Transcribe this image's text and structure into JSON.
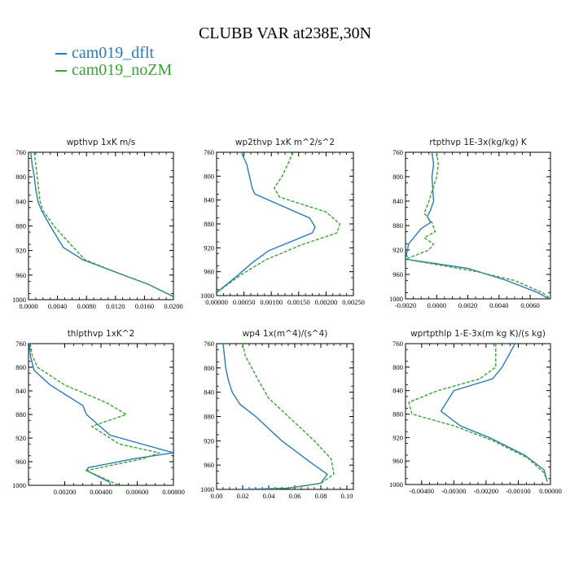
{
  "title": "CLUBB VAR at238E,30N",
  "legend": [
    {
      "label": "cam019_dflt",
      "color": "#2b7bb9"
    },
    {
      "label": "cam019_noZM",
      "color": "#3aa335"
    }
  ],
  "chart_data": [
    {
      "type": "line",
      "title": "wpthvp  1xK m/s",
      "xlim": [
        0,
        0.02
      ],
      "ylim": [
        760,
        1000
      ],
      "xticks": [
        "0.0000",
        "0.0040",
        "0.0080",
        "0.0120",
        "0.0160",
        "0.0200"
      ],
      "yticks": [
        "760",
        "800",
        "840",
        "880",
        "920",
        "960",
        "1000"
      ],
      "series": [
        {
          "legend_index": 0,
          "x": [
            0.0003,
            0.0005,
            0.0008,
            0.001,
            0.0013,
            0.0018,
            0.003,
            0.0048,
            0.0075,
            0.012,
            0.0165,
            0.02
          ],
          "y": [
            760,
            780,
            800,
            820,
            840,
            855,
            880,
            915,
            935,
            955,
            975,
            995
          ]
        },
        {
          "legend_index": 1,
          "x": [
            0.0008,
            0.001,
            0.0012,
            0.0014,
            0.0016,
            0.002,
            0.0035,
            0.0058,
            0.0078,
            0.012,
            0.0165,
            0.02
          ],
          "y": [
            760,
            780,
            800,
            820,
            840,
            855,
            880,
            910,
            935,
            955,
            975,
            995
          ]
        }
      ]
    },
    {
      "type": "line",
      "title": "wp2thvp  1xK m^2/s^2",
      "xlim": [
        0,
        0.0025
      ],
      "ylim": [
        760,
        1000
      ],
      "xticks": [
        "0.00000",
        "0.00050",
        "0.00100",
        "0.00150",
        "0.00200",
        "0.00250"
      ],
      "yticks": [
        "760",
        "800",
        "840",
        "880",
        "920",
        "960",
        "1000"
      ],
      "series": [
        {
          "legend_index": 0,
          "x": [
            0.00045,
            0.00055,
            0.0006,
            0.00065,
            0.0007,
            0.0017,
            0.0018,
            0.00175,
            0.00095,
            0.00065,
            0.0004,
            0.0
          ],
          "y": [
            760,
            780,
            800,
            820,
            830,
            870,
            885,
            895,
            925,
            945,
            965,
            995
          ]
        },
        {
          "legend_index": 1,
          "x": [
            0.0014,
            0.0013,
            0.0012,
            0.00105,
            0.00115,
            0.002,
            0.00225,
            0.0022,
            0.00155,
            0.0009,
            0.00045,
            0.0
          ],
          "y": [
            760,
            780,
            800,
            820,
            835,
            860,
            880,
            895,
            915,
            940,
            965,
            995
          ]
        }
      ]
    },
    {
      "type": "line",
      "title": "rtpthvp  1E-3x(kg/kg) K",
      "xlim": [
        -0.002,
        0.0073
      ],
      "ylim": [
        760,
        1000
      ],
      "xticks": [
        "-0.0020",
        "0.0000",
        "0.0020",
        "0.0040",
        "0.0060"
      ],
      "yticks": [
        "760",
        "800",
        "840",
        "880",
        "920",
        "960",
        "1000"
      ],
      "series": [
        {
          "legend_index": 0,
          "x": [
            -0.0003,
            -0.0002,
            -0.0003,
            -0.0002,
            -0.0004,
            -0.0006,
            -0.0004,
            -0.001,
            -0.0018,
            -0.002,
            0.002,
            0.0045,
            0.0065,
            0.0072
          ],
          "y": [
            760,
            780,
            800,
            840,
            855,
            865,
            875,
            885,
            910,
            935,
            950,
            970,
            990,
            1000
          ]
        },
        {
          "legend_index": 1,
          "x": [
            0.0,
            0.0001,
            0.0,
            -0.0005,
            -0.0008,
            -0.0003,
            -0.0001,
            -0.0008,
            -0.0002,
            -0.0005,
            -0.002,
            0.0025,
            0.005,
            0.0068,
            0.0073
          ],
          "y": [
            760,
            780,
            800,
            840,
            860,
            875,
            890,
            900,
            910,
            920,
            935,
            955,
            970,
            990,
            1000
          ]
        }
      ]
    },
    {
      "type": "line",
      "title": "thlpthvp  1xK^2",
      "xlim": [
        0,
        0.008
      ],
      "ylim": [
        760,
        1000
      ],
      "xticks": [
        "0.00200",
        "0.00400",
        "0.00600",
        "0.00800"
      ],
      "yticks": [
        "760",
        "800",
        "840",
        "880",
        "920",
        "960",
        "1000"
      ],
      "series": [
        {
          "legend_index": 0,
          "x": [
            5e-05,
            0.0001,
            0.0003,
            0.0012,
            0.003,
            0.0032,
            0.0045,
            0.008,
            0.0058,
            0.0033,
            0.0032,
            0.0045
          ],
          "y": [
            760,
            780,
            805,
            830,
            865,
            880,
            915,
            945,
            955,
            970,
            975,
            995
          ]
        },
        {
          "legend_index": 1,
          "x": [
            0.0001,
            0.0002,
            0.0005,
            0.002,
            0.0043,
            0.0054,
            0.0035,
            0.005,
            0.0072,
            0.0063,
            0.0032,
            0.005
          ],
          "y": [
            760,
            780,
            800,
            830,
            860,
            880,
            900,
            930,
            945,
            955,
            975,
            1000
          ]
        }
      ]
    },
    {
      "type": "line",
      "title": "wp4  1x(m^4)/(s^4)",
      "xlim": [
        0,
        0.105
      ],
      "ylim": [
        760,
        1000
      ],
      "xticks": [
        "0.00",
        "0.02",
        "0.04",
        "0.06",
        "0.08",
        "0.10"
      ],
      "yticks": [
        "760",
        "800",
        "840",
        "880",
        "920",
        "960",
        "1000"
      ],
      "series": [
        {
          "legend_index": 0,
          "x": [
            0.005,
            0.007,
            0.009,
            0.012,
            0.018,
            0.03,
            0.05,
            0.075,
            0.085,
            0.08,
            0.055,
            0.02
          ],
          "y": [
            760,
            800,
            820,
            840,
            860,
            880,
            920,
            960,
            975,
            990,
            998,
            1000
          ]
        },
        {
          "legend_index": 1,
          "x": [
            0.02,
            0.022,
            0.027,
            0.032,
            0.04,
            0.055,
            0.075,
            0.088,
            0.09,
            0.08,
            0.055,
            0.04
          ],
          "y": [
            760,
            780,
            800,
            820,
            850,
            880,
            920,
            950,
            975,
            990,
            998,
            1000
          ]
        }
      ]
    },
    {
      "type": "line",
      "title": "wprtpthlp  1-E-3x(m kg K)/(s kg)",
      "xlim": [
        -0.0045,
        0.0
      ],
      "ylim": [
        760,
        1000
      ],
      "xticks": [
        "-0.00400",
        "-0.00300",
        "-0.00200",
        "-0.00100",
        "0.00000"
      ],
      "yticks": [
        "760",
        "800",
        "840",
        "880",
        "920",
        "960",
        "1000"
      ],
      "series": [
        {
          "legend_index": 0,
          "x": [
            -0.0011,
            -0.0013,
            -0.0015,
            -0.0018,
            -0.003,
            -0.0034,
            -0.0028,
            -0.0019,
            -0.0008,
            -0.0002,
            -0.0001
          ],
          "y": [
            760,
            780,
            800,
            820,
            840,
            875,
            900,
            920,
            950,
            975,
            995
          ]
        },
        {
          "legend_index": 1,
          "x": [
            -0.0017,
            -0.0017,
            -0.0017,
            -0.0022,
            -0.0035,
            -0.0044,
            -0.0043,
            -0.003,
            -0.0018,
            -0.0007,
            -0.0002,
            -0.0001
          ],
          "y": [
            760,
            780,
            800,
            820,
            840,
            860,
            880,
            900,
            925,
            955,
            980,
            995
          ]
        }
      ]
    }
  ]
}
